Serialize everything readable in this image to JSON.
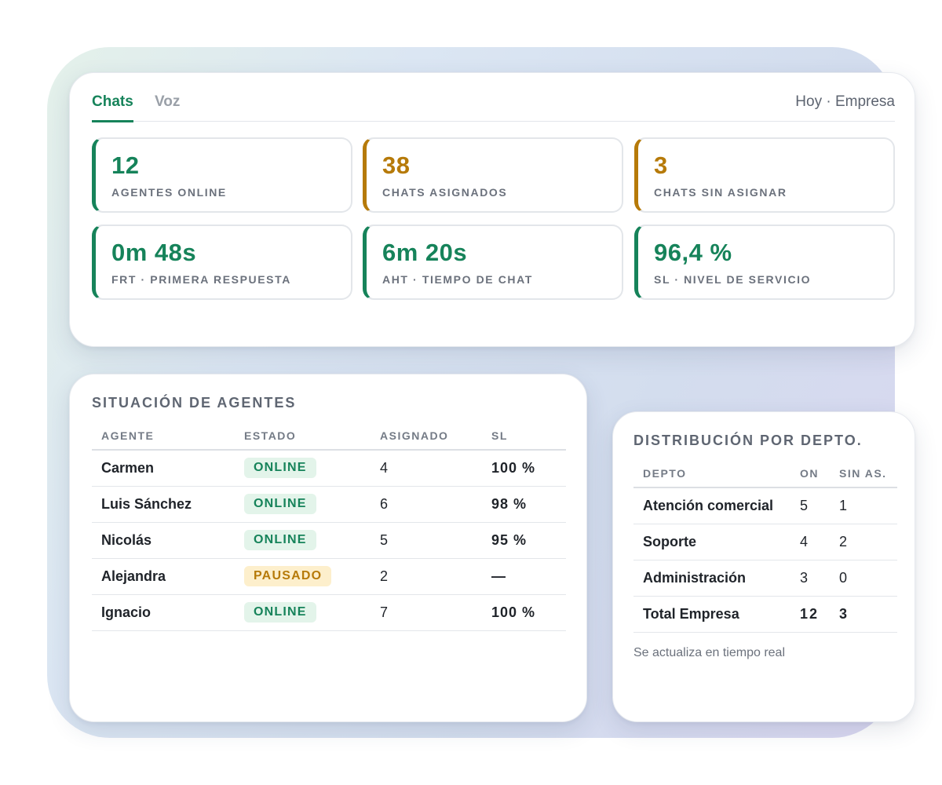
{
  "header": {
    "tabs": [
      {
        "label": "Chats",
        "active": true
      },
      {
        "label": "Voz",
        "active": false
      }
    ],
    "scope": "Hoy · Empresa"
  },
  "kpis": [
    {
      "value": "12",
      "label": "AGENTES ONLINE",
      "accent": "#16835a"
    },
    {
      "value": "38",
      "label": "CHATS ASIGNADOS",
      "accent": "#b67a09"
    },
    {
      "value": "3",
      "label": "CHATS SIN ASIGNAR",
      "accent": "#b67a09"
    },
    {
      "value": "0m 48s",
      "label": "FRT · PRIMERA RESPUESTA",
      "accent": "#16835a"
    },
    {
      "value": "6m 20s",
      "label": "AHT · TIEMPO DE CHAT",
      "accent": "#16835a"
    },
    {
      "value": "96,4 %",
      "label": "SL · NIVEL DE SERVICIO",
      "accent": "#16835a"
    }
  ],
  "agents": {
    "title": "SITUACIÓN DE AGENTES",
    "columns": [
      "AGENTE",
      "ESTADO",
      "ASIGNADO",
      "SL"
    ],
    "rows": [
      {
        "name": "Carmen",
        "status": "ONLINE",
        "assigned": "4",
        "sl": "100 %"
      },
      {
        "name": "Luis Sánchez",
        "status": "ONLINE",
        "assigned": "6",
        "sl": "98 %"
      },
      {
        "name": "Nicolás",
        "status": "ONLINE",
        "assigned": "5",
        "sl": "95 %"
      },
      {
        "name": "Alejandra",
        "status": "PAUSADO",
        "assigned": "2",
        "sl": "—"
      },
      {
        "name": "Ignacio",
        "status": "ONLINE",
        "assigned": "7",
        "sl": "100 %"
      }
    ]
  },
  "depto": {
    "title": "DISTRIBUCIÓN POR DEPTO.",
    "columns": [
      "DEPTO",
      "ON",
      "SIN AS."
    ],
    "rows": [
      {
        "name": "Atención comercial",
        "on": "5",
        "unassigned": "1"
      },
      {
        "name": "Soporte",
        "on": "4",
        "unassigned": "2"
      },
      {
        "name": "Administración",
        "on": "3",
        "unassigned": "0"
      }
    ],
    "total": {
      "name": "Total Empresa",
      "on": "12",
      "unassigned": "3"
    },
    "footnote": "Se actualiza en tiempo real"
  },
  "colors": {
    "green": "#16835a",
    "amber": "#b67a09",
    "online_bg": "#e3f4ea",
    "paused_bg": "#fdefcc"
  }
}
